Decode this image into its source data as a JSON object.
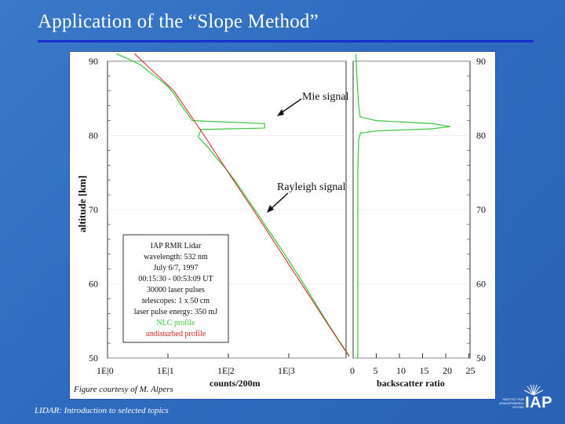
{
  "slide": {
    "title": "Application of the “Slope Method”",
    "footer": "LIDAR: Introduction to selected topics",
    "caption": "Figure courtesy of M. Alpers"
  },
  "logo": {
    "mark": "IAP",
    "small_lines": [
      "INSTITUT FÜR",
      "ATMOSPHÄREN-",
      "PHYSIK"
    ]
  },
  "chart_data": [
    {
      "type": "line",
      "ylabel": "altitude [km]",
      "xlabel": "counts/200m",
      "x_scale": "log",
      "x_tick_labels": [
        "1E|0",
        "1E|1",
        "1E|2",
        "1E|3"
      ],
      "y_tick_labels": [
        "90",
        "80",
        "70",
        "60",
        "50"
      ],
      "ylim": [
        50,
        90
      ],
      "annotations": [
        "Mie signal",
        "Rayleigh signal"
      ],
      "series": [
        {
          "name": "NLC profile",
          "color": "#3cc43c",
          "points": [
            [
              0.15,
              91
            ],
            [
              0.35,
              90.3
            ],
            [
              0.55,
              89.5
            ],
            [
              0.7,
              88.5
            ],
            [
              0.85,
              87.6
            ],
            [
              1.0,
              86.6
            ],
            [
              1.12,
              85.4
            ],
            [
              1.2,
              84.3
            ],
            [
              1.3,
              83.2
            ],
            [
              1.4,
              82
            ],
            [
              2.6,
              81.6
            ],
            [
              2.6,
              81.0
            ],
            [
              1.55,
              80.8
            ],
            [
              1.5,
              79.8
            ],
            [
              1.65,
              78.5
            ],
            [
              1.8,
              77
            ],
            [
              1.95,
              75.6
            ],
            [
              2.1,
              74
            ],
            [
              2.22,
              72.6
            ],
            [
              2.35,
              71
            ],
            [
              2.48,
              69.5
            ],
            [
              2.6,
              68
            ],
            [
              2.75,
              66.2
            ],
            [
              2.9,
              64.4
            ],
            [
              3.05,
              62.5
            ],
            [
              3.2,
              60.6
            ],
            [
              3.35,
              58.6
            ],
            [
              3.5,
              56.6
            ],
            [
              3.65,
              54.6
            ],
            [
              3.82,
              52.5
            ],
            [
              4.0,
              50.3
            ]
          ]
        },
        {
          "name": "undisturbed profile",
          "color": "#d42020",
          "points": [
            [
              0.45,
              91
            ],
            [
              1.1,
              86
            ],
            [
              1.6,
              80
            ],
            [
              2.0,
              75
            ],
            [
              2.45,
              69.5
            ],
            [
              2.85,
              64.5
            ],
            [
              3.25,
              59.5
            ],
            [
              3.65,
              54.5
            ],
            [
              4.0,
              50.2
            ]
          ]
        }
      ]
    },
    {
      "type": "line",
      "xlabel": "backscatter ratio",
      "x_tick_labels": [
        "0",
        "5",
        "10",
        "15",
        "20",
        "25"
      ],
      "y_tick_labels": [
        "90",
        "80",
        "70",
        "60",
        "50"
      ],
      "xlim": [
        0,
        25
      ],
      "ylim": [
        50,
        90
      ],
      "series": [
        {
          "name": "NLC profile",
          "color": "#3cc43c",
          "points": [
            [
              0.6,
              91
            ],
            [
              0.8,
              88
            ],
            [
              1.0,
              86
            ],
            [
              1.2,
              84
            ],
            [
              1.5,
              82.5
            ],
            [
              5,
              82
            ],
            [
              17,
              81.6
            ],
            [
              21,
              81.2
            ],
            [
              17,
              80.9
            ],
            [
              5,
              80.6
            ],
            [
              1.6,
              80.3
            ],
            [
              1.2,
              79.5
            ],
            [
              1.0,
              75
            ],
            [
              1.0,
              70
            ],
            [
              1.0,
              60
            ],
            [
              1.0,
              50
            ]
          ]
        }
      ]
    }
  ],
  "legend_box": {
    "lines": [
      "IAP RMR Lidar",
      "wavelength: 532 nm",
      "July 6/7, 1997",
      "00:15:30 - 00:53:09 UT",
      "30000 laser pulses",
      "telescopes: 1 x 50 cm",
      "laser pulse energy: 350 mJ",
      "NLC profile",
      "undisturbed profile"
    ]
  }
}
